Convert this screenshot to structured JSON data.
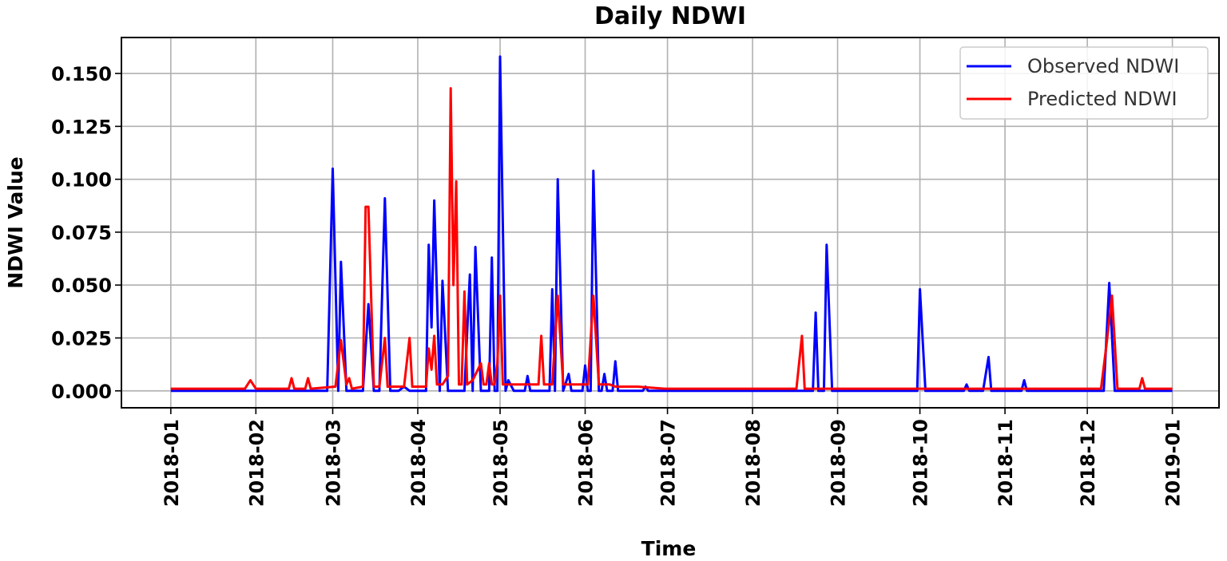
{
  "chart_data": {
    "type": "line",
    "title": "Daily NDWI",
    "xlabel": "Time",
    "ylabel": "NDWI Value",
    "x_type": "date",
    "xlim": [
      "2017-12-14",
      "2019-01-18"
    ],
    "ylim": [
      -0.008,
      0.167
    ],
    "xticks": [
      "2018-01",
      "2018-02",
      "2018-03",
      "2018-04",
      "2018-05",
      "2018-06",
      "2018-07",
      "2018-08",
      "2018-09",
      "2018-10",
      "2018-11",
      "2018-12",
      "2019-01"
    ],
    "yticks": [
      0.0,
      0.025,
      0.05,
      0.075,
      0.1,
      0.125,
      0.15
    ],
    "ytick_labels": [
      "0.000",
      "0.025",
      "0.050",
      "0.075",
      "0.100",
      "0.125",
      "0.150"
    ],
    "grid": true,
    "legend_position": "top-right",
    "series": [
      {
        "name": "Observed NDWI",
        "color": "#0000ff",
        "points": [
          [
            "2018-01-01",
            0
          ],
          [
            "2018-02-27",
            0
          ],
          [
            "2018-03-01",
            0.105
          ],
          [
            "2018-03-03",
            0
          ],
          [
            "2018-03-04",
            0.061
          ],
          [
            "2018-03-06",
            0
          ],
          [
            "2018-03-12",
            0
          ],
          [
            "2018-03-14",
            0.041
          ],
          [
            "2018-03-16",
            0
          ],
          [
            "2018-03-18",
            0
          ],
          [
            "2018-03-20",
            0.091
          ],
          [
            "2018-03-22",
            0
          ],
          [
            "2018-03-25",
            0
          ],
          [
            "2018-03-27",
            0.002
          ],
          [
            "2018-03-29",
            0
          ],
          [
            "2018-04-04",
            0
          ],
          [
            "2018-04-05",
            0.069
          ],
          [
            "2018-04-06",
            0.03
          ],
          [
            "2018-04-07",
            0.09
          ],
          [
            "2018-04-09",
            0
          ],
          [
            "2018-04-10",
            0.052
          ],
          [
            "2018-04-12",
            0
          ],
          [
            "2018-04-18",
            0
          ],
          [
            "2018-04-20",
            0.055
          ],
          [
            "2018-04-21",
            0
          ],
          [
            "2018-04-22",
            0.068
          ],
          [
            "2018-04-24",
            0
          ],
          [
            "2018-04-27",
            0
          ],
          [
            "2018-04-28",
            0.063
          ],
          [
            "2018-04-29",
            0
          ],
          [
            "2018-04-30",
            0
          ],
          [
            "2018-05-01",
            0.158
          ],
          [
            "2018-05-03",
            0
          ],
          [
            "2018-05-04",
            0.005
          ],
          [
            "2018-05-06",
            0
          ],
          [
            "2018-05-10",
            0
          ],
          [
            "2018-05-11",
            0.007
          ],
          [
            "2018-05-12",
            0
          ],
          [
            "2018-05-19",
            0
          ],
          [
            "2018-05-20",
            0.048
          ],
          [
            "2018-05-21",
            0
          ],
          [
            "2018-05-22",
            0.1
          ],
          [
            "2018-05-24",
            0
          ],
          [
            "2018-05-26",
            0.008
          ],
          [
            "2018-05-27",
            0
          ],
          [
            "2018-05-31",
            0
          ],
          [
            "2018-06-01",
            0.012
          ],
          [
            "2018-06-02",
            0
          ],
          [
            "2018-06-03",
            0
          ],
          [
            "2018-06-04",
            0.104
          ],
          [
            "2018-06-06",
            0
          ],
          [
            "2018-06-07",
            0
          ],
          [
            "2018-06-08",
            0.008
          ],
          [
            "2018-06-09",
            0
          ],
          [
            "2018-06-11",
            0
          ],
          [
            "2018-06-12",
            0.014
          ],
          [
            "2018-06-13",
            0
          ],
          [
            "2018-06-22",
            0
          ],
          [
            "2018-06-23",
            0.002
          ],
          [
            "2018-06-24",
            0
          ],
          [
            "2018-08-23",
            0
          ],
          [
            "2018-08-24",
            0.037
          ],
          [
            "2018-08-25",
            0
          ],
          [
            "2018-08-27",
            0
          ],
          [
            "2018-08-28",
            0.069
          ],
          [
            "2018-08-30",
            0
          ],
          [
            "2018-09-30",
            0
          ],
          [
            "2018-10-01",
            0.048
          ],
          [
            "2018-10-03",
            0
          ],
          [
            "2018-10-17",
            0
          ],
          [
            "2018-10-18",
            0.003
          ],
          [
            "2018-10-19",
            0
          ],
          [
            "2018-10-24",
            0
          ],
          [
            "2018-10-26",
            0.016
          ],
          [
            "2018-10-27",
            0
          ],
          [
            "2018-11-07",
            0
          ],
          [
            "2018-11-08",
            0.005
          ],
          [
            "2018-11-09",
            0
          ],
          [
            "2018-12-07",
            0
          ],
          [
            "2018-12-09",
            0.051
          ],
          [
            "2018-12-11",
            0
          ],
          [
            "2019-01-01",
            0
          ]
        ]
      },
      {
        "name": "Predicted NDWI",
        "color": "#ff0000",
        "points": [
          [
            "2018-01-01",
            0.001
          ],
          [
            "2018-01-28",
            0.001
          ],
          [
            "2018-01-30",
            0.005
          ],
          [
            "2018-02-01",
            0.001
          ],
          [
            "2018-02-13",
            0.001
          ],
          [
            "2018-02-14",
            0.006
          ],
          [
            "2018-02-15",
            0.001
          ],
          [
            "2018-02-19",
            0.001
          ],
          [
            "2018-02-20",
            0.006
          ],
          [
            "2018-02-21",
            0.001
          ],
          [
            "2018-03-02",
            0.002
          ],
          [
            "2018-03-04",
            0.024
          ],
          [
            "2018-03-06",
            0.003
          ],
          [
            "2018-03-07",
            0.006
          ],
          [
            "2018-03-08",
            0.001
          ],
          [
            "2018-03-12",
            0.002
          ],
          [
            "2018-03-13",
            0.087
          ],
          [
            "2018-03-14",
            0.087
          ],
          [
            "2018-03-16",
            0.002
          ],
          [
            "2018-03-18",
            0.002
          ],
          [
            "2018-03-20",
            0.025
          ],
          [
            "2018-03-21",
            0.002
          ],
          [
            "2018-03-27",
            0.002
          ],
          [
            "2018-03-29",
            0.025
          ],
          [
            "2018-03-30",
            0.002
          ],
          [
            "2018-04-04",
            0.002
          ],
          [
            "2018-04-05",
            0.02
          ],
          [
            "2018-04-06",
            0.01
          ],
          [
            "2018-04-07",
            0.026
          ],
          [
            "2018-04-08",
            0.003
          ],
          [
            "2018-04-10",
            0.003
          ],
          [
            "2018-04-12",
            0.007
          ],
          [
            "2018-04-13",
            0.143
          ],
          [
            "2018-04-14",
            0.05
          ],
          [
            "2018-04-15",
            0.099
          ],
          [
            "2018-04-16",
            0.003
          ],
          [
            "2018-04-17",
            0.003
          ],
          [
            "2018-04-18",
            0.047
          ],
          [
            "2018-04-19",
            0.003
          ],
          [
            "2018-04-21",
            0.005
          ],
          [
            "2018-04-24",
            0.013
          ],
          [
            "2018-04-25",
            0.003
          ],
          [
            "2018-04-26",
            0.003
          ],
          [
            "2018-04-27",
            0.013
          ],
          [
            "2018-04-28",
            0.003
          ],
          [
            "2018-04-29",
            0.003
          ],
          [
            "2018-04-30",
            0.013
          ],
          [
            "2018-05-01",
            0.045
          ],
          [
            "2018-05-02",
            0.003
          ],
          [
            "2018-05-15",
            0.003
          ],
          [
            "2018-05-16",
            0.026
          ],
          [
            "2018-05-17",
            0.003
          ],
          [
            "2018-05-20",
            0.003
          ],
          [
            "2018-05-22",
            0.045
          ],
          [
            "2018-05-24",
            0.003
          ],
          [
            "2018-06-02",
            0.003
          ],
          [
            "2018-06-04",
            0.045
          ],
          [
            "2018-06-06",
            0.003
          ],
          [
            "2018-06-10",
            0.003
          ],
          [
            "2018-06-12",
            0.002
          ],
          [
            "2018-06-20",
            0.002
          ],
          [
            "2018-06-30",
            0.001
          ],
          [
            "2018-08-17",
            0.001
          ],
          [
            "2018-08-19",
            0.026
          ],
          [
            "2018-08-20",
            0.001
          ],
          [
            "2018-12-06",
            0.001
          ],
          [
            "2018-12-08",
            0.022
          ],
          [
            "2018-12-10",
            0.045
          ],
          [
            "2018-12-12",
            0.001
          ],
          [
            "2018-12-20",
            0.001
          ],
          [
            "2018-12-21",
            0.006
          ],
          [
            "2018-12-22",
            0.001
          ],
          [
            "2019-01-01",
            0.001
          ]
        ]
      }
    ]
  }
}
